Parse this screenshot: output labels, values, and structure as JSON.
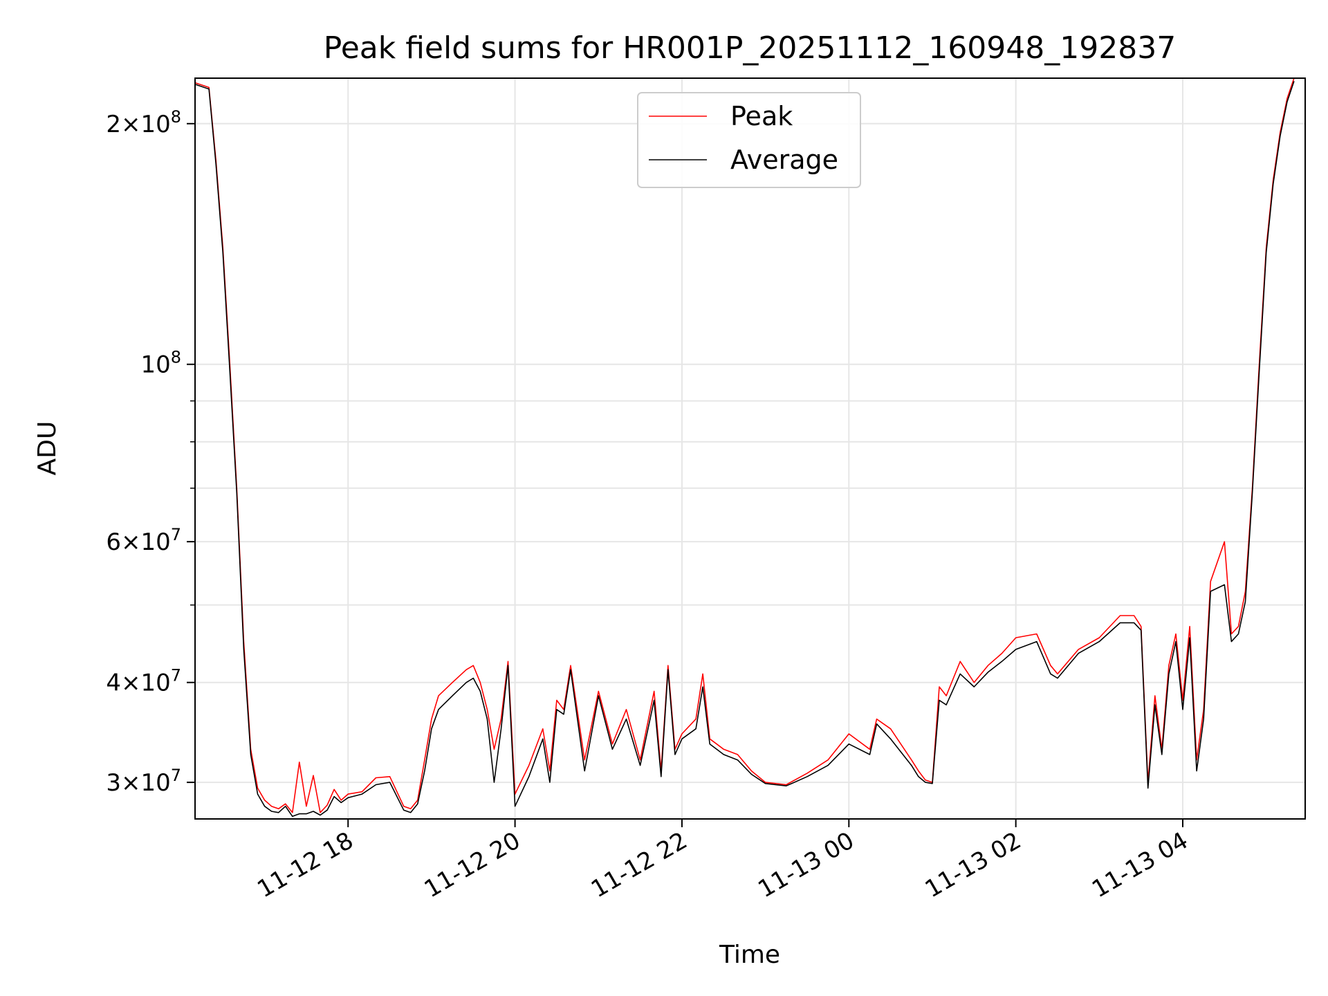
{
  "chart_data": {
    "type": "line",
    "title": "Peak field sums for HR001P_20251112_160948_192837",
    "xlabel": "Time",
    "ylabel": "ADU",
    "y_scale": "log",
    "ylim": [
      27000000,
      228000000
    ],
    "xlim": [
      "2025-11-12 16:10",
      "2025-11-13 05:28"
    ],
    "grid": true,
    "legend_position": "top-center",
    "x_ticks": [
      {
        "t": "2025-11-12 18:00",
        "label": "11-12 18"
      },
      {
        "t": "2025-11-12 20:00",
        "label": "11-12 20"
      },
      {
        "t": "2025-11-12 22:00",
        "label": "11-12 22"
      },
      {
        "t": "2025-11-13 00:00",
        "label": "11-13 00"
      },
      {
        "t": "2025-11-13 02:00",
        "label": "11-13 02"
      },
      {
        "t": "2025-11-13 04:00",
        "label": "11-13 04"
      }
    ],
    "y_ticks": [
      {
        "value": 30000000,
        "label": "3×10",
        "exp": "7"
      },
      {
        "value": 40000000,
        "label": "4×10",
        "exp": "7"
      },
      {
        "value": 60000000,
        "label": "6×10",
        "exp": "7"
      },
      {
        "value": 100000000,
        "label": "10",
        "exp": "8"
      },
      {
        "value": 200000000,
        "label": "2×10",
        "exp": "8"
      }
    ],
    "y_minor_ticks": [
      50000000,
      70000000,
      80000000,
      90000000
    ],
    "series": [
      {
        "name": "Peak",
        "color": "#ff0000",
        "x": [
          "2025-11-12 16:10",
          "2025-11-12 16:20",
          "2025-11-12 16:25",
          "2025-11-12 16:30",
          "2025-11-12 16:35",
          "2025-11-12 16:40",
          "2025-11-12 16:45",
          "2025-11-12 16:50",
          "2025-11-12 16:55",
          "2025-11-12 17:00",
          "2025-11-12 17:05",
          "2025-11-12 17:10",
          "2025-11-12 17:15",
          "2025-11-12 17:20",
          "2025-11-12 17:25",
          "2025-11-12 17:30",
          "2025-11-12 17:35",
          "2025-11-12 17:40",
          "2025-11-12 17:45",
          "2025-11-12 17:50",
          "2025-11-12 17:55",
          "2025-11-12 18:00",
          "2025-11-12 18:10",
          "2025-11-12 18:20",
          "2025-11-12 18:30",
          "2025-11-12 18:40",
          "2025-11-12 18:45",
          "2025-11-12 18:50",
          "2025-11-12 18:55",
          "2025-11-12 19:00",
          "2025-11-12 19:05",
          "2025-11-12 19:15",
          "2025-11-12 19:25",
          "2025-11-12 19:30",
          "2025-11-12 19:35",
          "2025-11-12 19:40",
          "2025-11-12 19:45",
          "2025-11-12 19:50",
          "2025-11-12 19:55",
          "2025-11-12 20:00",
          "2025-11-12 20:10",
          "2025-11-12 20:20",
          "2025-11-12 20:25",
          "2025-11-12 20:30",
          "2025-11-12 20:35",
          "2025-11-12 20:40",
          "2025-11-12 20:50",
          "2025-11-12 21:00",
          "2025-11-12 21:10",
          "2025-11-12 21:20",
          "2025-11-12 21:30",
          "2025-11-12 21:40",
          "2025-11-12 21:45",
          "2025-11-12 21:50",
          "2025-11-12 21:55",
          "2025-11-12 22:00",
          "2025-11-12 22:10",
          "2025-11-12 22:15",
          "2025-11-12 22:20",
          "2025-11-12 22:25",
          "2025-11-12 22:30",
          "2025-11-12 22:40",
          "2025-11-12 22:50",
          "2025-11-12 23:00",
          "2025-11-12 23:15",
          "2025-11-12 23:30",
          "2025-11-12 23:45",
          "2025-11-13 00:00",
          "2025-11-13 00:15",
          "2025-11-13 00:20",
          "2025-11-13 00:30",
          "2025-11-13 00:45",
          "2025-11-13 00:50",
          "2025-11-13 00:55",
          "2025-11-13 01:00",
          "2025-11-13 01:05",
          "2025-11-13 01:10",
          "2025-11-13 01:20",
          "2025-11-13 01:30",
          "2025-11-13 01:40",
          "2025-11-13 01:50",
          "2025-11-13 02:00",
          "2025-11-13 02:15",
          "2025-11-13 02:25",
          "2025-11-13 02:30",
          "2025-11-13 02:45",
          "2025-11-13 03:00",
          "2025-11-13 03:15",
          "2025-11-13 03:25",
          "2025-11-13 03:30",
          "2025-11-13 03:35",
          "2025-11-13 03:40",
          "2025-11-13 03:45",
          "2025-11-13 03:50",
          "2025-11-13 03:55",
          "2025-11-13 04:00",
          "2025-11-13 04:05",
          "2025-11-13 04:10",
          "2025-11-13 04:15",
          "2025-11-13 04:20",
          "2025-11-13 04:30",
          "2025-11-13 04:35",
          "2025-11-13 04:40",
          "2025-11-13 04:45",
          "2025-11-13 04:50",
          "2025-11-13 04:55",
          "2025-11-13 05:00",
          "2025-11-13 05:05",
          "2025-11-13 05:10",
          "2025-11-13 05:15",
          "2025-11-13 05:20"
        ],
        "y": [
          225000000,
          222000000,
          180000000,
          140000000,
          100000000,
          70000000,
          45000000,
          33000000,
          29500000,
          28500000,
          28000000,
          27800000,
          28200000,
          27500000,
          31800000,
          28000000,
          30600000,
          27500000,
          28100000,
          29400000,
          28500000,
          29000000,
          29200000,
          30400000,
          30500000,
          28000000,
          27800000,
          28500000,
          32000000,
          36000000,
          38500000,
          40000000,
          41500000,
          42000000,
          40000000,
          37000000,
          33000000,
          36000000,
          42500000,
          29000000,
          31500000,
          35000000,
          31000000,
          38000000,
          37000000,
          42000000,
          32000000,
          39000000,
          33500000,
          37000000,
          32000000,
          39000000,
          31000000,
          42000000,
          33000000,
          34500000,
          36000000,
          41000000,
          34000000,
          33500000,
          33000000,
          32500000,
          31000000,
          30000000,
          29800000,
          30800000,
          32000000,
          34500000,
          33000000,
          36000000,
          35000000,
          32000000,
          31000000,
          30200000,
          30000000,
          39500000,
          38500000,
          42500000,
          40000000,
          42000000,
          43500000,
          45500000,
          46000000,
          42000000,
          41000000,
          44000000,
          45500000,
          48500000,
          48500000,
          47000000,
          30000000,
          38500000,
          33000000,
          42000000,
          46000000,
          38000000,
          47000000,
          32000000,
          37000000,
          53500000,
          60000000,
          46000000,
          47000000,
          52000000,
          70000000,
          100000000,
          140000000,
          170000000,
          195000000,
          215000000,
          228000000
        ]
      },
      {
        "name": "Average",
        "color": "#000000",
        "x": [
          "2025-11-12 16:10",
          "2025-11-12 16:20",
          "2025-11-12 16:25",
          "2025-11-12 16:30",
          "2025-11-12 16:35",
          "2025-11-12 16:40",
          "2025-11-12 16:45",
          "2025-11-12 16:50",
          "2025-11-12 16:55",
          "2025-11-12 17:00",
          "2025-11-12 17:05",
          "2025-11-12 17:10",
          "2025-11-12 17:15",
          "2025-11-12 17:20",
          "2025-11-12 17:25",
          "2025-11-12 17:30",
          "2025-11-12 17:35",
          "2025-11-12 17:40",
          "2025-11-12 17:45",
          "2025-11-12 17:50",
          "2025-11-12 17:55",
          "2025-11-12 18:00",
          "2025-11-12 18:10",
          "2025-11-12 18:20",
          "2025-11-12 18:30",
          "2025-11-12 18:40",
          "2025-11-12 18:45",
          "2025-11-12 18:50",
          "2025-11-12 18:55",
          "2025-11-12 19:00",
          "2025-11-12 19:05",
          "2025-11-12 19:15",
          "2025-11-12 19:25",
          "2025-11-12 19:30",
          "2025-11-12 19:35",
          "2025-11-12 19:40",
          "2025-11-12 19:45",
          "2025-11-12 19:50",
          "2025-11-12 19:55",
          "2025-11-12 20:00",
          "2025-11-12 20:10",
          "2025-11-12 20:20",
          "2025-11-12 20:25",
          "2025-11-12 20:30",
          "2025-11-12 20:35",
          "2025-11-12 20:40",
          "2025-11-12 20:50",
          "2025-11-12 21:00",
          "2025-11-12 21:10",
          "2025-11-12 21:20",
          "2025-11-12 21:30",
          "2025-11-12 21:40",
          "2025-11-12 21:45",
          "2025-11-12 21:50",
          "2025-11-12 21:55",
          "2025-11-12 22:00",
          "2025-11-12 22:10",
          "2025-11-12 22:15",
          "2025-11-12 22:20",
          "2025-11-12 22:25",
          "2025-11-12 22:30",
          "2025-11-12 22:40",
          "2025-11-12 22:50",
          "2025-11-12 23:00",
          "2025-11-12 23:15",
          "2025-11-12 23:30",
          "2025-11-12 23:45",
          "2025-11-13 00:00",
          "2025-11-13 00:15",
          "2025-11-13 00:20",
          "2025-11-13 00:30",
          "2025-11-13 00:45",
          "2025-11-13 00:50",
          "2025-11-13 00:55",
          "2025-11-13 01:00",
          "2025-11-13 01:05",
          "2025-11-13 01:10",
          "2025-11-13 01:20",
          "2025-11-13 01:30",
          "2025-11-13 01:40",
          "2025-11-13 01:50",
          "2025-11-13 02:00",
          "2025-11-13 02:15",
          "2025-11-13 02:25",
          "2025-11-13 02:30",
          "2025-11-13 02:45",
          "2025-11-13 03:00",
          "2025-11-13 03:15",
          "2025-11-13 03:25",
          "2025-11-13 03:30",
          "2025-11-13 03:35",
          "2025-11-13 03:40",
          "2025-11-13 03:45",
          "2025-11-13 03:50",
          "2025-11-13 03:55",
          "2025-11-13 04:00",
          "2025-11-13 04:05",
          "2025-11-13 04:10",
          "2025-11-13 04:15",
          "2025-11-13 04:20",
          "2025-11-13 04:30",
          "2025-11-13 04:35",
          "2025-11-13 04:40",
          "2025-11-13 04:45",
          "2025-11-13 04:50",
          "2025-11-13 04:55",
          "2025-11-13 05:00",
          "2025-11-13 05:05",
          "2025-11-13 05:10",
          "2025-11-13 05:15",
          "2025-11-13 05:20"
        ],
        "y": [
          224000000,
          221000000,
          178000000,
          138000000,
          98000000,
          69000000,
          44000000,
          32500000,
          29000000,
          28000000,
          27600000,
          27500000,
          28000000,
          27200000,
          27400000,
          27400000,
          27600000,
          27300000,
          27700000,
          28800000,
          28300000,
          28700000,
          29000000,
          29800000,
          30000000,
          27700000,
          27500000,
          28200000,
          31000000,
          35000000,
          37000000,
          38500000,
          40000000,
          40500000,
          39000000,
          36000000,
          30000000,
          35000000,
          42000000,
          28000000,
          30500000,
          34000000,
          30000000,
          37000000,
          36500000,
          41500000,
          31000000,
          38500000,
          33000000,
          36000000,
          31500000,
          38000000,
          30500000,
          41500000,
          32500000,
          34000000,
          35000000,
          39500000,
          33500000,
          33000000,
          32500000,
          32000000,
          30700000,
          29900000,
          29700000,
          30500000,
          31500000,
          33500000,
          32500000,
          35500000,
          34000000,
          31500000,
          30500000,
          30000000,
          29900000,
          38000000,
          37500000,
          41000000,
          39500000,
          41200000,
          42500000,
          44000000,
          45000000,
          41000000,
          40500000,
          43500000,
          45000000,
          47500000,
          47500000,
          46500000,
          29500000,
          37500000,
          32500000,
          41000000,
          45000000,
          37000000,
          45500000,
          31000000,
          36000000,
          52000000,
          53000000,
          45000000,
          46000000,
          50500000,
          69000000,
          98000000,
          138000000,
          168000000,
          193000000,
          213000000,
          226000000
        ]
      }
    ]
  }
}
